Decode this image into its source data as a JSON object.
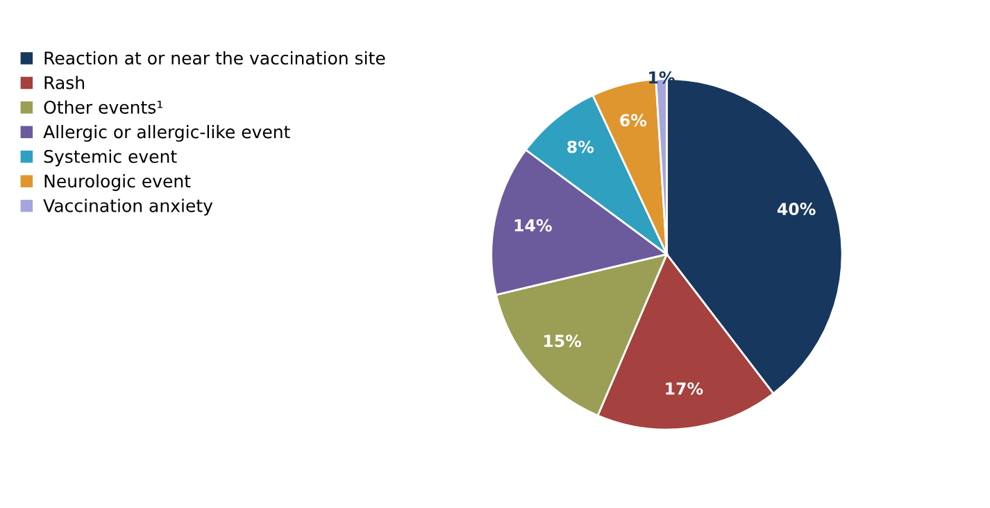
{
  "chart_data": {
    "type": "pie",
    "categories": [
      "Reaction at or near the vaccination site",
      "Rash",
      "Other events¹",
      "Allergic or allergic-like event",
      "Systemic event",
      "Neurologic event",
      "Vaccination anxiety"
    ],
    "values": [
      40,
      17,
      15,
      14,
      8,
      6,
      1
    ],
    "colors": [
      "#17375e",
      "#a5413e",
      "#9a9f55",
      "#6b5b9c",
      "#2fa0c0",
      "#e0962e",
      "#a6a6dc"
    ],
    "value_labels": [
      "40%",
      "17%",
      "15%",
      "14%",
      "8%",
      "6%",
      "1%"
    ],
    "legend": "left"
  }
}
